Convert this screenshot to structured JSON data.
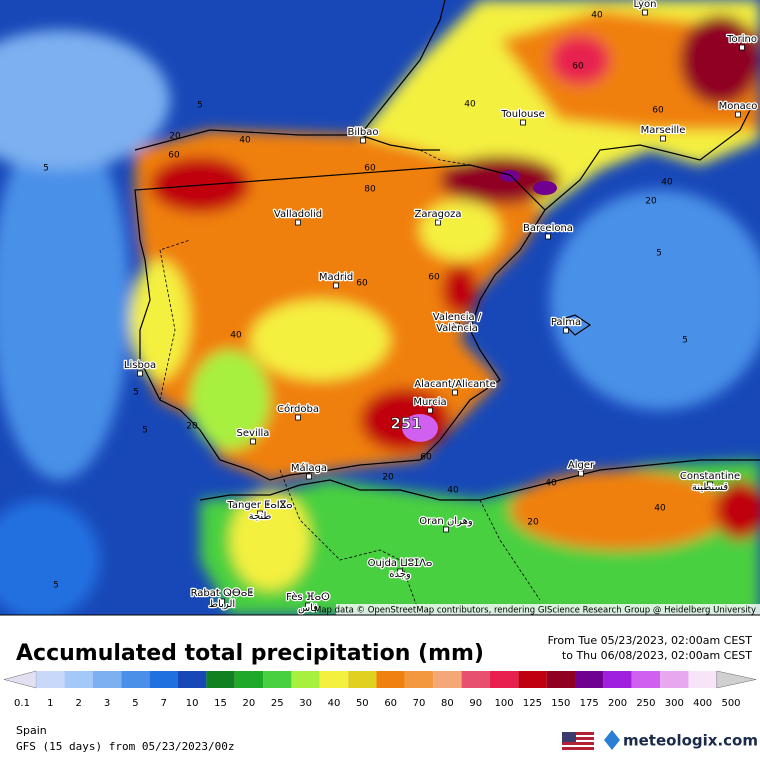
{
  "map": {
    "cities": [
      {
        "name": "Lyon"
      },
      {
        "name": "Torino"
      },
      {
        "name": "Monaco"
      },
      {
        "name": "Toulouse"
      },
      {
        "name": "Marseille"
      },
      {
        "name": "Bilbao"
      },
      {
        "name": "Valladolid"
      },
      {
        "name": "Zaragoza"
      },
      {
        "name": "Barcelona"
      },
      {
        "name": "Madrid"
      },
      {
        "name": "Palma"
      },
      {
        "name": "Valencia /",
        "name2": "València"
      },
      {
        "name": "Lisboa"
      },
      {
        "name": "Alacant/Alicante"
      },
      {
        "name": "Murcia"
      },
      {
        "name": "Córdoba"
      },
      {
        "name": "Sevilla"
      },
      {
        "name": "Alger"
      },
      {
        "name": "Constantine",
        "name2": "قسنطينة"
      },
      {
        "name": "Málaga"
      },
      {
        "name": "Tanger ⵟⴰⵏⴵⴰ",
        "name2": "طنجة"
      },
      {
        "name": "Oran وهران"
      },
      {
        "name": "Oujda ⵡⵓⵊⴷⴰ",
        "name2": "وجدة"
      },
      {
        "name": "Rabat ⵕⴱⴰⵟ",
        "name2": "الرباط"
      },
      {
        "name": "Fès ⴼⴰⵙ",
        "name2": "فاس"
      }
    ],
    "contour_labels": [
      40,
      60,
      40,
      60,
      5,
      60,
      40,
      20,
      5,
      60,
      80,
      40,
      20,
      60,
      60,
      5,
      40,
      5,
      5,
      20,
      5,
      40,
      20,
      40,
      20,
      40,
      60,
      5
    ],
    "max_value": 251,
    "attribution": "Map data © OpenStreetMap contributors, rendering GIScience Research Group @ Heidelberg University"
  },
  "title": "Accumulated total precipitation (mm)",
  "period": {
    "from": "From Tue 05/23/2023, 02:00am CEST",
    "to": "to Thu 06/08/2023, 02:00am CEST"
  },
  "legend": {
    "values": [
      0.1,
      1,
      2,
      3,
      5,
      7,
      10,
      15,
      20,
      25,
      30,
      40,
      50,
      60,
      70,
      80,
      90,
      100,
      125,
      150,
      175,
      200,
      250,
      300,
      400,
      500
    ],
    "colors": [
      "#e4e0f4",
      "#c8d8f8",
      "#a4c8f8",
      "#7cb0f0",
      "#4a90e8",
      "#2070e0",
      "#1848b8",
      "#108020",
      "#20a828",
      "#48d040",
      "#a8f040",
      "#f4f040",
      "#e0d020",
      "#f08010",
      "#f49840",
      "#f4a878",
      "#e85070",
      "#e82050",
      "#c00010",
      "#900020",
      "#700090",
      "#a020e0",
      "#d060f0",
      "#e8a8f0",
      "#f8e4f8",
      "#d0d0d0"
    ]
  },
  "region": "Spain",
  "model": "GFS (15 days) from  05/23/2023/00z",
  "brand": "meteologix.com"
}
